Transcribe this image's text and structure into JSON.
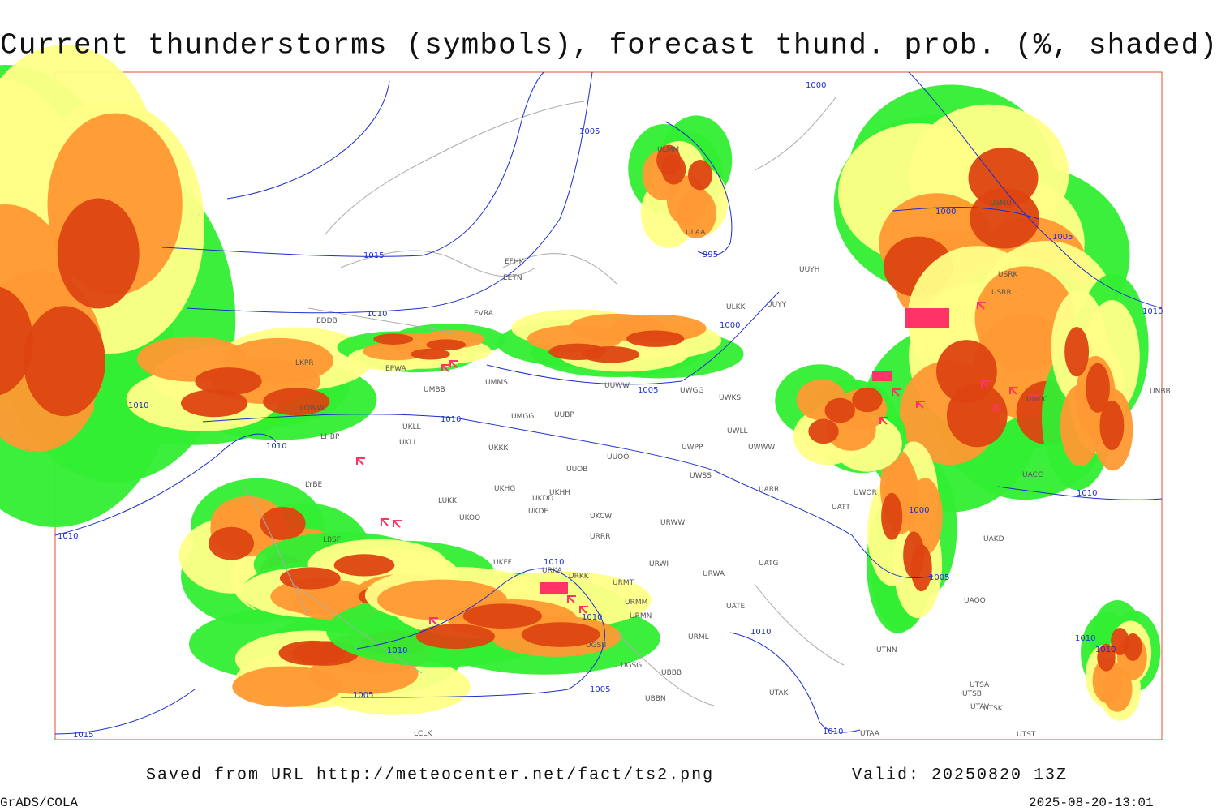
{
  "title": "Current thunderstorms (symbols), forecast thund. prob. (%, shaded)",
  "footer": {
    "source": "Saved from URL http://meteocenter.net/fact/ts2.png",
    "valid": "Valid: 20250820 13Z",
    "software": "GrADS/COLA",
    "timestamp": "2025-08-20-13:01"
  },
  "map": {
    "isobar_labels": [
      "1000",
      "1005",
      "1015",
      "1010",
      "995",
      "1000",
      "1005",
      "1010",
      "1010",
      "1010",
      "1010",
      "1000",
      "1005",
      "1010",
      "1010",
      "1000",
      "1005",
      "1010",
      "1010",
      "1010",
      "1005",
      "1005",
      "1015",
      "1010",
      "1010",
      "1010",
      "1010"
    ],
    "station_labels": [
      "ULMM",
      "ULAA",
      "UUYH",
      "UUYY",
      "ULKK",
      "EFHK",
      "EETN",
      "EVRA",
      "EDDB",
      "LKPR",
      "EPWA",
      "UMBB",
      "UMMS",
      "UMGG",
      "UUBP",
      "UKLL",
      "UKLI",
      "UKKK",
      "UUOB",
      "UUOO",
      "UWPP",
      "UWSS",
      "UWWW",
      "UWLL",
      "UWKS",
      "UWGG",
      "UUWW",
      "LOWW",
      "LHBP",
      "LYBE",
      "LUKK",
      "UKOO",
      "UKHG",
      "UKDD",
      "UKDE",
      "UKHH",
      "UKCW",
      "URRR",
      "URWW",
      "URWI",
      "URWA",
      "UATG",
      "UATE",
      "UATT",
      "UARR",
      "UWOR",
      "LBSF",
      "UKFF",
      "URKA",
      "URKK",
      "URMT",
      "URMM",
      "URMN",
      "URML",
      "UGSB",
      "UGSG",
      "UBBB",
      "UBBN",
      "UTAK",
      "UTNN",
      "UTSA",
      "UTSB",
      "UTAV",
      "UTSK",
      "UTST",
      "UTAA",
      "LCLK",
      "UAOO",
      "UAKD",
      "UACC",
      "UNOC",
      "UNBB",
      "USRR",
      "USRK",
      "USMU"
    ]
  }
}
